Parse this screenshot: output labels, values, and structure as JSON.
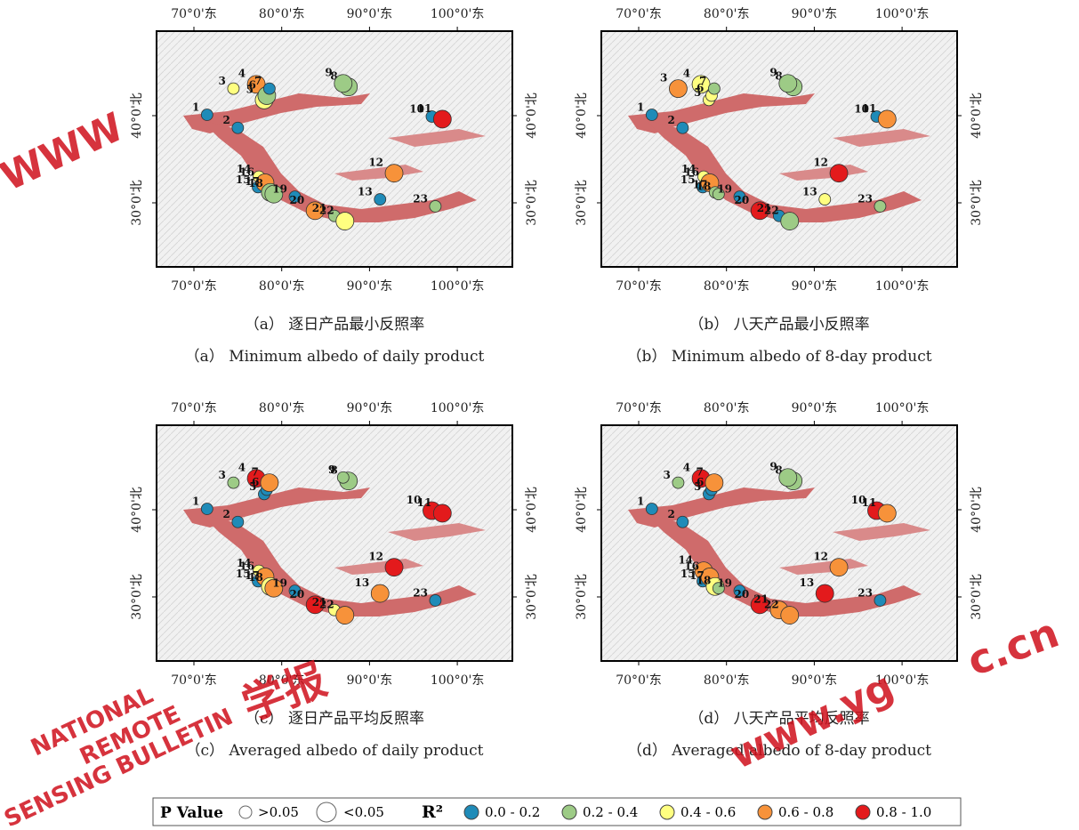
{
  "lon_ticks": [
    {
      "value": 70,
      "label": "70°0'东"
    },
    {
      "value": 80,
      "label": "80°0'东"
    },
    {
      "value": 90,
      "label": "90°0'东"
    },
    {
      "value": 100,
      "label": "100°0'东"
    }
  ],
  "lat_ticks": [
    {
      "value": 40,
      "label": "40°0'北"
    },
    {
      "value": 30,
      "label": "30°0'北"
    }
  ],
  "stations": [
    {
      "label": "1",
      "lon": 71.5,
      "lat": 40.1
    },
    {
      "label": "2",
      "lon": 75.0,
      "lat": 38.6
    },
    {
      "label": "3",
      "lon": 74.5,
      "lat": 43.1
    },
    {
      "label": "4",
      "lon": 77.1,
      "lat": 43.6
    },
    {
      "label": "5",
      "lon": 78.0,
      "lat": 41.8
    },
    {
      "label": "6",
      "lon": 78.3,
      "lat": 42.3
    },
    {
      "label": "7",
      "lon": 78.6,
      "lat": 43.1
    },
    {
      "label": "8",
      "lon": 87.6,
      "lat": 43.3
    },
    {
      "label": "9",
      "lon": 87.0,
      "lat": 43.7
    },
    {
      "label": "10",
      "lon": 97.1,
      "lat": 39.9
    },
    {
      "label": "11",
      "lon": 98.3,
      "lat": 39.6
    },
    {
      "label": "12",
      "lon": 92.8,
      "lat": 33.4
    },
    {
      "label": "13",
      "lon": 91.2,
      "lat": 30.4
    },
    {
      "label": "14",
      "lon": 77.4,
      "lat": 33.0
    },
    {
      "label": "15",
      "lon": 77.3,
      "lat": 31.8
    },
    {
      "label": "16",
      "lon": 78.1,
      "lat": 32.3
    },
    {
      "label": "17",
      "lon": 78.7,
      "lat": 31.2
    },
    {
      "label": "18",
      "lon": 79.1,
      "lat": 31.0
    },
    {
      "label": "19",
      "lon": 81.5,
      "lat": 30.7
    },
    {
      "label": "20",
      "lon": 83.8,
      "lat": 29.1
    },
    {
      "label": "21",
      "lon": 86.0,
      "lat": 28.5
    },
    {
      "label": "22",
      "lon": 87.2,
      "lat": 27.9
    },
    {
      "label": "23",
      "lon": 97.5,
      "lat": 29.6
    }
  ],
  "panels": [
    {
      "caption_cn": "（a） 逐日产品最小反照率",
      "caption_en": "（a）  Minimum albedo of daily product",
      "classes": [
        0,
        0,
        2,
        3,
        2,
        1,
        0,
        1,
        1,
        0,
        4,
        3,
        0,
        2,
        0,
        3,
        1,
        1,
        0,
        3,
        1,
        2,
        1
      ],
      "significant": [
        false,
        false,
        false,
        true,
        true,
        true,
        false,
        true,
        true,
        false,
        true,
        true,
        false,
        false,
        false,
        true,
        true,
        true,
        false,
        true,
        false,
        true,
        false
      ]
    },
    {
      "caption_cn": "（b） 八天产品最小反照率",
      "caption_en": "（b）  Minimum albedo of 8-day product",
      "classes": [
        0,
        0,
        3,
        2,
        2,
        2,
        1,
        1,
        1,
        0,
        3,
        4,
        2,
        2,
        0,
        3,
        1,
        1,
        0,
        4,
        0,
        1,
        1
      ],
      "significant": [
        false,
        false,
        true,
        true,
        false,
        false,
        false,
        true,
        true,
        false,
        true,
        true,
        false,
        false,
        false,
        true,
        false,
        false,
        false,
        true,
        false,
        true,
        false
      ]
    },
    {
      "caption_cn": "（c） 逐日产品平均反照率",
      "caption_en": "（c）  Averaged albedo of daily product",
      "classes": [
        0,
        0,
        1,
        4,
        0,
        0,
        3,
        1,
        1,
        4,
        4,
        4,
        3,
        2,
        0,
        3,
        2,
        3,
        0,
        4,
        2,
        3,
        0
      ],
      "significant": [
        false,
        false,
        false,
        true,
        false,
        false,
        true,
        true,
        false,
        true,
        true,
        true,
        true,
        false,
        false,
        true,
        true,
        true,
        false,
        true,
        false,
        true,
        false
      ]
    },
    {
      "caption_cn": "（d） 八天产品平均反照率",
      "caption_en": "（d）  Averaged albedo of 8-day product",
      "classes": [
        0,
        0,
        1,
        4,
        0,
        0,
        3,
        1,
        1,
        4,
        3,
        3,
        4,
        3,
        0,
        3,
        2,
        1,
        0,
        4,
        3,
        3,
        0
      ],
      "significant": [
        false,
        false,
        false,
        true,
        false,
        false,
        true,
        true,
        true,
        true,
        true,
        true,
        true,
        true,
        false,
        true,
        true,
        false,
        false,
        true,
        true,
        true,
        false
      ]
    }
  ],
  "legend": {
    "p_title": "P Value",
    "p_high": ">0.05",
    "p_low": "<0.05",
    "r2_title": "R²",
    "classes": [
      {
        "label": "0.0 - 0.2",
        "color": "#1f8bb8"
      },
      {
        "label": "0.2 - 0.4",
        "color": "#9dcb86"
      },
      {
        "label": "0.4 - 0.6",
        "color": "#ffff80"
      },
      {
        "label": "0.6 - 0.8",
        "color": "#f7923a"
      },
      {
        "label": "0.8 - 1.0",
        "color": "#e31a1c"
      }
    ]
  },
  "watermarks": [
    "WWW",
    "NATIONAL",
    "REMOTE",
    "SENSING BULLETIN",
    "学报",
    "www.yg",
    "c.cn"
  ]
}
